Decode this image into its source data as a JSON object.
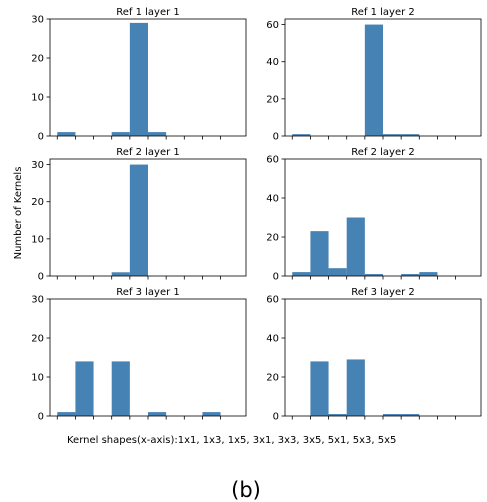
{
  "chart_data": [
    {
      "type": "bar",
      "title": "Ref 1 layer 1",
      "categories": [
        "1x1",
        "1x3",
        "1x5",
        "3x1",
        "3x3",
        "3x5",
        "5x1",
        "5x3",
        "5x5"
      ],
      "values": [
        1,
        0,
        0,
        1,
        29,
        1,
        0,
        0,
        0
      ],
      "ylim": [
        0,
        30
      ],
      "yticks": [
        "0",
        "10",
        "20",
        "30"
      ]
    },
    {
      "type": "bar",
      "title": "Ref 1 layer 2",
      "categories": [
        "1x1",
        "1x3",
        "1x5",
        "3x1",
        "3x3",
        "3x5",
        "5x1",
        "5x3",
        "5x5"
      ],
      "values": [
        1,
        0,
        0,
        0,
        60,
        1,
        1,
        0,
        0
      ],
      "ylim": [
        0,
        63
      ],
      "yticks": [
        "0",
        "20",
        "40",
        "60"
      ]
    },
    {
      "type": "bar",
      "title": "Ref 2 layer 1",
      "categories": [
        "1x1",
        "1x3",
        "1x5",
        "3x1",
        "3x3",
        "3x5",
        "5x1",
        "5x3",
        "5x5"
      ],
      "values": [
        0,
        0,
        0,
        1,
        30,
        0,
        0,
        0,
        0
      ],
      "ylim": [
        0,
        31.5
      ],
      "yticks": [
        "0",
        "10",
        "20",
        "30"
      ]
    },
    {
      "type": "bar",
      "title": "Ref 2 layer 2",
      "categories": [
        "1x1",
        "1x3",
        "1x5",
        "3x1",
        "3x3",
        "3x5",
        "5x1",
        "5x3",
        "5x5"
      ],
      "values": [
        2,
        23,
        4,
        30,
        1,
        0,
        1,
        2,
        0
      ],
      "ylim": [
        0,
        60
      ],
      "yticks": [
        "0",
        "20",
        "40",
        "60"
      ]
    },
    {
      "type": "bar",
      "title": "Ref 3 layer 1",
      "categories": [
        "1x1",
        "1x3",
        "1x5",
        "3x1",
        "3x3",
        "3x5",
        "5x1",
        "5x3",
        "5x5"
      ],
      "values": [
        1,
        14,
        0,
        14,
        0,
        1,
        0,
        0,
        1
      ],
      "ylim": [
        0,
        30
      ],
      "yticks": [
        "0",
        "10",
        "20",
        "30"
      ]
    },
    {
      "type": "bar",
      "title": "Ref 3 layer 2",
      "categories": [
        "1x1",
        "1x3",
        "1x5",
        "3x1",
        "3x3",
        "3x5",
        "5x1",
        "5x3",
        "5x5"
      ],
      "values": [
        0,
        28,
        1,
        29,
        0,
        1,
        1,
        0,
        0
      ],
      "ylim": [
        0,
        60
      ],
      "yticks": [
        "0",
        "20",
        "40",
        "60"
      ]
    }
  ],
  "ylabel": "Number of Kernels",
  "xlabel": "Kernel shapes(x-axis):1x1, 1x3, 1x5, 3x1, 3x3, 3x5, 5x1, 5x3, 5x5",
  "caption": "(b)",
  "colors": {
    "bar": "#4682b4"
  }
}
